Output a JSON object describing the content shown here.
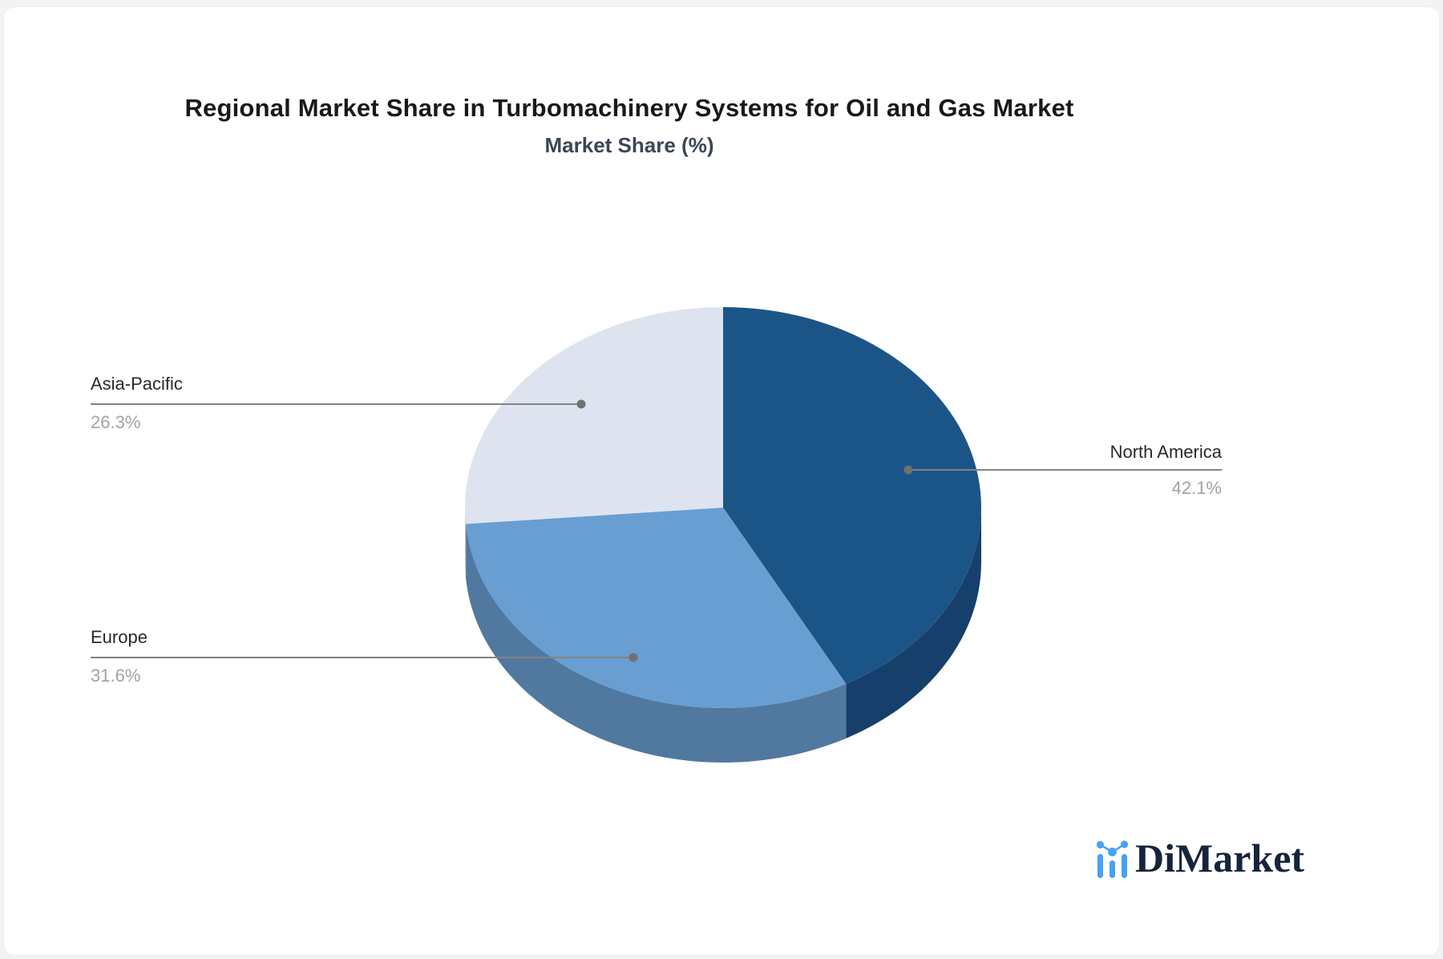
{
  "title": "Regional Market Share in Turbomachinery Systems for Oil and Gas Market",
  "subtitle": "Market Share (%)",
  "chart_data": {
    "type": "pie",
    "style": "3d",
    "title": "Regional Market Share in Turbomachinery Systems for Oil and Gas Market",
    "subtitle": "Market Share (%)",
    "unit": "%",
    "start_angle": "12-o-clock",
    "direction": "clockwise",
    "legend_position": "none",
    "label_style": "outside-leader-lines",
    "slices": [
      {
        "label": "North America",
        "value": 42.1,
        "display": "42.1%",
        "color": "#1B5588",
        "side_color": "#16406B"
      },
      {
        "label": "Europe",
        "value": 31.6,
        "display": "31.6%",
        "color": "#689ED2",
        "side_color": "#51789F"
      },
      {
        "label": "Asia-Pacific",
        "value": 26.3,
        "display": "26.3%",
        "color": "#DDE4F0",
        "side_color": "#BAC6D9"
      }
    ]
  },
  "logo": {
    "text": "DiMarket",
    "icon": "bar-line-chart-icon",
    "icon_color": "#47A1F4",
    "text_color": "#16243C"
  },
  "colors": {
    "leader_line": "#838383",
    "leader_dot": "#707070",
    "label_text": "#26292e",
    "pct_text": "#9ea3a9",
    "background": "#ffffff"
  }
}
